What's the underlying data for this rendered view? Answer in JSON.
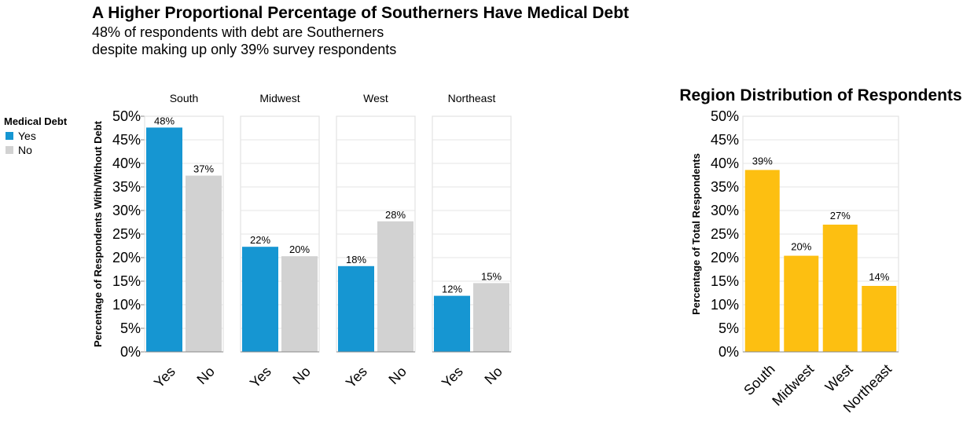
{
  "header": {
    "title": "A Higher Proportional Percentage of Southerners Have Medical Debt",
    "subtitle_line1": "48% of respondents with debt are Southerners",
    "subtitle_line2": "despite making up only 39% survey respondents"
  },
  "legend": {
    "title": "Medical Debt",
    "placement": "left",
    "items": [
      {
        "label": "Yes",
        "color": "#1696d2"
      },
      {
        "label": "No",
        "color": "#d2d2d2"
      }
    ]
  },
  "chart_data": [
    {
      "type": "bar",
      "title": "A Higher Proportional Percentage of Southerners Have Medical Debt",
      "ylabel": "Percentage of Respondents With/Without Debt",
      "ylim": [
        0,
        50
      ],
      "yticks": [
        "0%",
        "5%",
        "10%",
        "15%",
        "20%",
        "25%",
        "30%",
        "35%",
        "40%",
        "45%",
        "50%"
      ],
      "grid": true,
      "categories": [
        "Yes",
        "No"
      ],
      "colors": {
        "Yes": "#1696d2",
        "No": "#d2d2d2"
      },
      "facets": [
        {
          "name": "South",
          "values": [
            47.6,
            37.4
          ],
          "labels": [
            "48%",
            "37%"
          ]
        },
        {
          "name": "Midwest",
          "values": [
            22.3,
            20.3
          ],
          "labels": [
            "22%",
            "20%"
          ]
        },
        {
          "name": "West",
          "values": [
            18.2,
            27.7
          ],
          "labels": [
            "18%",
            "28%"
          ]
        },
        {
          "name": "Northeast",
          "values": [
            11.9,
            14.6
          ],
          "labels": [
            "12%",
            "15%"
          ]
        }
      ]
    },
    {
      "type": "bar",
      "title": "Region Distribution of Respondents",
      "ylabel": "Percentage of Total Respondents",
      "ylim": [
        0,
        50
      ],
      "yticks": [
        "0%",
        "5%",
        "10%",
        "15%",
        "20%",
        "25%",
        "30%",
        "35%",
        "40%",
        "45%",
        "50%"
      ],
      "grid": true,
      "color": "#fdbf11",
      "categories": [
        "South",
        "Midwest",
        "West",
        "Northeast"
      ],
      "values": [
        38.6,
        20.4,
        27.0,
        14.0
      ],
      "labels": [
        "39%",
        "20%",
        "27%",
        "14%"
      ]
    }
  ]
}
